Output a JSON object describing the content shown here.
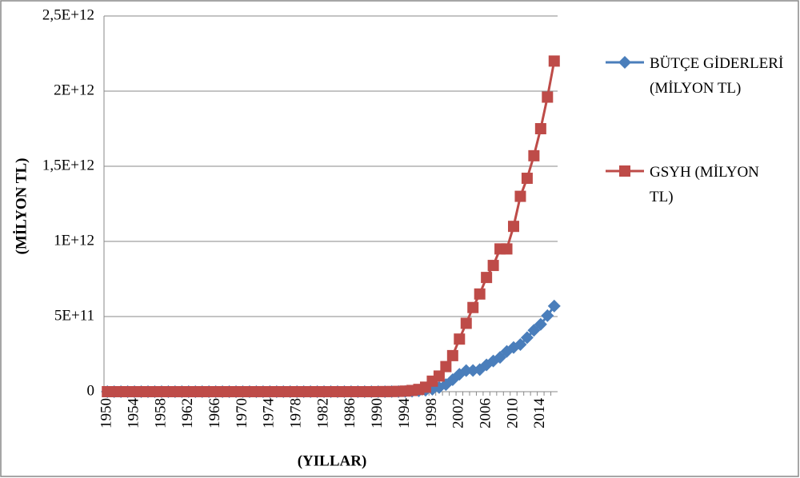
{
  "chart_data": {
    "type": "line",
    "xlabel": "(YILLAR)",
    "ylabel": "(MİLYON TL)",
    "categories": [
      "1950",
      null,
      null,
      null,
      "1954",
      null,
      null,
      null,
      "1958",
      null,
      null,
      null,
      "1962",
      null,
      null,
      null,
      "1966",
      null,
      null,
      null,
      "1970",
      null,
      null,
      null,
      "1974",
      null,
      null,
      null,
      "1978",
      null,
      null,
      null,
      "1982",
      null,
      null,
      null,
      "1986",
      null,
      null,
      null,
      "1990",
      null,
      null,
      null,
      "1994",
      null,
      null,
      null,
      "1998",
      null,
      null,
      null,
      "2002",
      null,
      null,
      null,
      "2006",
      null,
      null,
      null,
      "2010",
      null,
      null,
      null,
      "2014",
      null,
      null
    ],
    "series": [
      {
        "name": "BÜTÇE GİDERLERİ (MİLYON TL)",
        "color": "#4a7ebb",
        "marker": "diamond",
        "values": [
          0,
          0,
          0,
          0,
          0,
          0,
          0,
          0,
          0,
          0,
          0,
          0,
          0,
          0,
          0,
          0,
          0,
          0,
          0,
          0,
          0,
          0,
          0,
          0,
          0,
          0,
          0,
          0,
          0,
          0,
          0,
          0,
          0,
          0,
          0,
          0,
          0,
          0,
          0,
          0,
          100000000,
          200000000,
          400000000,
          900000000,
          1600000000,
          3000000000,
          6000000000,
          10000000000,
          16000000000,
          28000000000,
          47000000000,
          80000000000,
          116000000000,
          140000000000,
          141000000000,
          147000000000,
          178000000000,
          204000000000,
          228000000000,
          268000000000,
          294000000000,
          314000000000,
          360000000000,
          408000000000,
          448000000000,
          506000000000,
          570000000000
        ]
      },
      {
        "name": "GSYH (MİLYON TL)",
        "color": "#be4b48",
        "marker": "square",
        "values": [
          0,
          0,
          0,
          0,
          0,
          0,
          0,
          0,
          0,
          0,
          0,
          0,
          0,
          0,
          0,
          0,
          0,
          0,
          0,
          0,
          0,
          0,
          0,
          0,
          0,
          0,
          0,
          0,
          0,
          0,
          0,
          0,
          0,
          0,
          0,
          0,
          0,
          0,
          0,
          0,
          400000000,
          600000000,
          1000000000,
          2000000000,
          4000000000,
          8000000000,
          15000000000,
          30000000000,
          70000000000,
          104000000000,
          167000000000,
          240000000000,
          350000000000,
          455000000000,
          560000000000,
          650000000000,
          760000000000,
          840000000000,
          950000000000,
          950000000000,
          1100000000000,
          1300000000000,
          1420000000000,
          1570000000000,
          1750000000000,
          1960000000000,
          2200000000000
        ]
      }
    ],
    "ylim": [
      0,
      2500000000000
    ],
    "yticks": [
      0,
      {
        "value": 500000000000,
        "label": "5E+11"
      },
      {
        "value": 1000000000000,
        "label": "1E+12"
      },
      {
        "value": 1500000000000,
        "label": "1,5E+12"
      },
      {
        "value": 2000000000000,
        "label": "2E+12"
      },
      {
        "value": 2500000000000,
        "label": "2,5E+12"
      }
    ],
    "grid": true,
    "legend": "right"
  }
}
